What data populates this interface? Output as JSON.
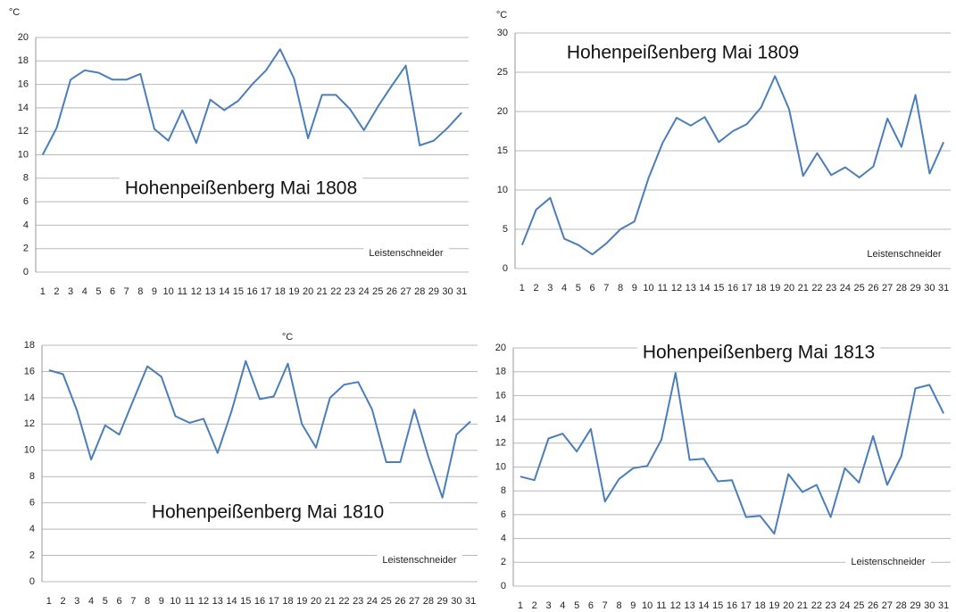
{
  "chart_data": [
    {
      "type": "line",
      "title": "Hohenpeißenberg Mai 1808",
      "y_label": "°C",
      "annotation": "Leistenschneider",
      "categories": [
        "1",
        "2",
        "3",
        "4",
        "5",
        "6",
        "7",
        "8",
        "9",
        "10",
        "11",
        "12",
        "13",
        "14",
        "15",
        "16",
        "17",
        "18",
        "19",
        "20",
        "21",
        "22",
        "23",
        "24",
        "25",
        "26",
        "27",
        "28",
        "29",
        "30",
        "31"
      ],
      "values": [
        10,
        12.3,
        16.4,
        17.2,
        17,
        16.4,
        16.4,
        16.9,
        12.2,
        11.2,
        13.8,
        11,
        14.7,
        13.8,
        14.6,
        16,
        17.2,
        19,
        16.5,
        11.4,
        15.1,
        15.1,
        13.9,
        12.1,
        14.1,
        15.9,
        17.6,
        10.8,
        11.2,
        12.3,
        13.6
      ],
      "color": "#4a7ebb",
      "ylim": [
        0,
        20
      ],
      "yticks": [
        0,
        2,
        4,
        6,
        8,
        10,
        12,
        14,
        16,
        18,
        20
      ],
      "grid": true
    },
    {
      "type": "line",
      "title": "Hohenpeißenberg Mai 1809",
      "y_label": "°C",
      "annotation": "Leistenschneider",
      "categories": [
        "1",
        "2",
        "3",
        "4",
        "5",
        "6",
        "7",
        "8",
        "9",
        "10",
        "11",
        "12",
        "13",
        "14",
        "15",
        "16",
        "17",
        "18",
        "19",
        "20",
        "21",
        "22",
        "23",
        "24",
        "25",
        "26",
        "27",
        "28",
        "29",
        "30",
        "31"
      ],
      "values": [
        3,
        7.5,
        9,
        3.8,
        3,
        1.8,
        3.2,
        5,
        6,
        11.5,
        16,
        19.2,
        18.2,
        19.3,
        16.1,
        17.5,
        18.4,
        20.5,
        24.5,
        20.3,
        11.8,
        14.7,
        11.9,
        12.9,
        11.6,
        13,
        19.1,
        15.5,
        22.1,
        12.1,
        16.1
      ],
      "color": "#4a7ebb",
      "ylim": [
        0,
        30
      ],
      "yticks": [
        0,
        5,
        10,
        15,
        20,
        25,
        30
      ],
      "grid": true
    },
    {
      "type": "line",
      "title": "Hohenpeißenberg Mai 1810",
      "y_label": "°C",
      "annotation": "Leistenschneider",
      "categories": [
        "1",
        "2",
        "3",
        "4",
        "5",
        "6",
        "7",
        "8",
        "9",
        "10",
        "11",
        "12",
        "13",
        "14",
        "15",
        "16",
        "17",
        "18",
        "19",
        "20",
        "21",
        "22",
        "23",
        "24",
        "25",
        "26",
        "27",
        "28",
        "29",
        "30",
        "31"
      ],
      "values": [
        16.1,
        15.8,
        13,
        9.3,
        11.9,
        11.2,
        13.8,
        16.4,
        15.6,
        12.6,
        12.1,
        12.4,
        9.8,
        13,
        16.8,
        13.9,
        14.1,
        16.6,
        12,
        10.2,
        14,
        15,
        15.2,
        13.1,
        9.1,
        9.1,
        13.1,
        9.5,
        6.4,
        11.2,
        12.2
      ],
      "color": "#4a7ebb",
      "ylim": [
        0,
        18
      ],
      "yticks": [
        0,
        2,
        4,
        6,
        8,
        10,
        12,
        14,
        16,
        18
      ],
      "grid": true
    },
    {
      "type": "line",
      "title": "Hohenpeißenberg Mai 1813",
      "annotation": "Leistenschneider",
      "categories": [
        "1",
        "2",
        "3",
        "4",
        "5",
        "6",
        "7",
        "8",
        "9",
        "10",
        "11",
        "12",
        "13",
        "14",
        "15",
        "16",
        "17",
        "18",
        "19",
        "20",
        "21",
        "22",
        "23",
        "24",
        "25",
        "26",
        "27",
        "28",
        "29",
        "30",
        "31"
      ],
      "values": [
        9.2,
        8.9,
        12.4,
        12.8,
        11.3,
        13.2,
        7.1,
        9,
        9.9,
        10.1,
        12.3,
        17.9,
        10.6,
        10.7,
        8.8,
        8.9,
        5.8,
        5.9,
        4.4,
        9.4,
        7.9,
        8.5,
        5.8,
        9.9,
        8.7,
        12.6,
        8.5,
        10.9,
        16.6,
        16.9,
        14.5
      ],
      "color": "#4a7ebb",
      "ylim": [
        0,
        20
      ],
      "yticks": [
        0,
        2,
        4,
        6,
        8,
        10,
        12,
        14,
        16,
        18,
        20
      ],
      "grid": true
    }
  ]
}
